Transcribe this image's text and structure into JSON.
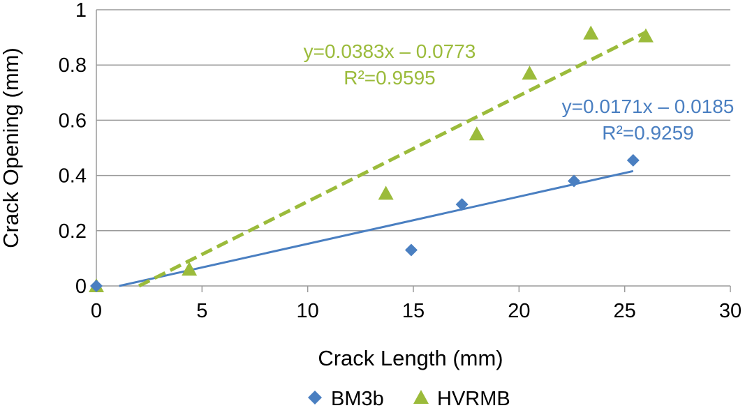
{
  "chart_data": {
    "type": "scatter",
    "xlabel": "Crack Length (mm)",
    "ylabel": "Crack Opening (mm)",
    "xlim": [
      0,
      30
    ],
    "ylim": [
      0,
      1
    ],
    "xticks": [
      "0",
      "5",
      "10",
      "15",
      "20",
      "25",
      "30"
    ],
    "yticks": [
      "0",
      "0.2",
      "0.4",
      "0.6",
      "0.8",
      "1"
    ],
    "grid": "horizontal",
    "legend_position": "bottom",
    "series": [
      {
        "name": "BM3b",
        "color": "#4a7fc1",
        "marker": "diamond",
        "points": [
          [
            0,
            0
          ],
          [
            14.9,
            0.13
          ],
          [
            17.3,
            0.295
          ],
          [
            22.6,
            0.38
          ],
          [
            25.4,
            0.455
          ]
        ],
        "trendline": {
          "slope": 0.0171,
          "intercept": -0.0185,
          "x_range": [
            0,
            25.4
          ],
          "style": "solid",
          "equation": "y=0.0171x – 0.0185",
          "r2": "R²=0.9259"
        }
      },
      {
        "name": "HVRMB",
        "color": "#9bbb3b",
        "marker": "triangle",
        "points": [
          [
            0,
            0
          ],
          [
            4.4,
            0.06
          ],
          [
            13.7,
            0.335
          ],
          [
            18.0,
            0.55
          ],
          [
            20.5,
            0.77
          ],
          [
            23.4,
            0.915
          ],
          [
            26.0,
            0.905
          ]
        ],
        "trendline": {
          "slope": 0.0383,
          "intercept": -0.0773,
          "x_range": [
            2.0,
            26.0
          ],
          "style": "dashed",
          "equation": "y=0.0383x – 0.0773",
          "r2": "R²=0.9595"
        }
      }
    ]
  }
}
